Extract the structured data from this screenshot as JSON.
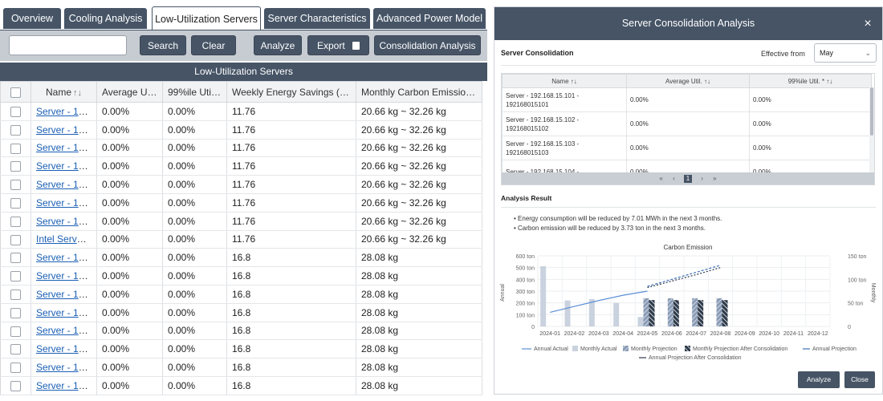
{
  "tabs": [
    {
      "label": "Overview",
      "active": false
    },
    {
      "label": "Cooling Analysis",
      "active": false
    },
    {
      "label": "Low-Utilization Servers",
      "active": true
    },
    {
      "label": "Server Characteristics",
      "active": false
    },
    {
      "label": "Advanced Power Model",
      "active": false
    }
  ],
  "toolbar": {
    "search_placeholder": "",
    "search_value": "",
    "search_label": "Search",
    "clear_label": "Clear",
    "analyze_label": "Analyze",
    "export_label": "Export",
    "consolidation_label": "Consolidation Analysis"
  },
  "grid": {
    "title": "Low-Utilization Servers",
    "columns": [
      "",
      "Name",
      "Average Uti...",
      "99%ile Util. ...",
      "Weekly Energy Savings (kW...",
      "Monthly Carbon Emission S..."
    ],
    "rows": [
      [
        "Server - 19...",
        "0.00%",
        "0.00%",
        "11.76",
        "20.66 kg ~ 32.26 kg"
      ],
      [
        "Server - 19...",
        "0.00%",
        "0.00%",
        "11.76",
        "20.66 kg ~ 32.26 kg"
      ],
      [
        "Server - 19...",
        "0.00%",
        "0.00%",
        "11.76",
        "20.66 kg ~ 32.26 kg"
      ],
      [
        "Server - 19...",
        "0.00%",
        "0.00%",
        "11.76",
        "20.66 kg ~ 32.26 kg"
      ],
      [
        "Server - 19...",
        "0.00%",
        "0.00%",
        "11.76",
        "20.66 kg ~ 32.26 kg"
      ],
      [
        "Server - 19...",
        "0.00%",
        "0.00%",
        "11.76",
        "20.66 kg ~ 32.26 kg"
      ],
      [
        "Server - 19...",
        "0.00%",
        "0.00%",
        "11.76",
        "20.66 kg ~ 32.26 kg"
      ],
      [
        "Intel Server...",
        "0.00%",
        "0.00%",
        "11.76",
        "20.66 kg ~ 32.26 kg"
      ],
      [
        "Server - 19...",
        "0.00%",
        "0.00%",
        "16.8",
        "28.08 kg"
      ],
      [
        "Server - 19...",
        "0.00%",
        "0.00%",
        "16.8",
        "28.08 kg"
      ],
      [
        "Server - 19...",
        "0.00%",
        "0.00%",
        "16.8",
        "28.08 kg"
      ],
      [
        "Server - 19...",
        "0.00%",
        "0.00%",
        "16.8",
        "28.08 kg"
      ],
      [
        "Server - 19...",
        "0.00%",
        "0.00%",
        "16.8",
        "28.08 kg"
      ],
      [
        "Server - 19...",
        "0.00%",
        "0.00%",
        "16.8",
        "28.08 kg"
      ],
      [
        "Server - 19...",
        "0.00%",
        "0.00%",
        "16.8",
        "28.08 kg"
      ],
      [
        "Server - 19...",
        "0.00%",
        "0.00%",
        "16.8",
        "28.08 kg"
      ]
    ]
  },
  "modal": {
    "title": "Server Consolidation Analysis",
    "close_glyph": "×",
    "section1": "Server Consolidation",
    "effective_label": "Effective from",
    "effective_value": "May",
    "subgrid_columns": [
      "Name",
      "Average Util.",
      "99%ile Util. *"
    ],
    "subgrid_rows": [
      [
        "Server - 192.168.15.101 - 192168015101",
        "0.00%",
        "0.00%"
      ],
      [
        "Server - 192.168.15.102 - 192168015102",
        "0.00%",
        "0.00%"
      ],
      [
        "Server - 192.168.15.103 - 192168015103",
        "0.00%",
        "0.00%"
      ],
      [
        "Server - 192.168.15.104 -",
        "0.00%",
        "0.00%"
      ]
    ],
    "pager": {
      "first": "«",
      "prev": "‹",
      "current": "1",
      "next": "›",
      "last": "»"
    },
    "section2": "Analysis Result",
    "bullets": [
      "Energy consumption will be reduced by 7.01 MWh in the next 3 months.",
      "Carbon emission will be reduced by 3.73 ton in the next 3 months."
    ],
    "analyze_label": "Analyze",
    "close_label": "Close"
  },
  "chart_data": {
    "type": "bar",
    "title": "Carbon Emission",
    "categories": [
      "2024-01",
      "2024-02",
      "2024-03",
      "2024-04",
      "2024-05",
      "2024-06",
      "2024-07",
      "2024-08",
      "2024-09",
      "2024-10",
      "2024-11",
      "2024-12"
    ],
    "ylabel_left": "Annual",
    "ylabel_right": "Monthly",
    "ylim_left": [
      0,
      600
    ],
    "ylim_right": [
      0,
      150
    ],
    "left_ticks": [
      "0",
      "100 ton",
      "200 ton",
      "300 ton",
      "400 ton",
      "500 ton",
      "600 ton"
    ],
    "right_ticks": [
      "0",
      "50 ton",
      "100 ton",
      "150 ton"
    ],
    "series": [
      {
        "name": "Annual Actual",
        "kind": "line",
        "axis": "left",
        "values": [
          120,
          170,
          220,
          265,
          300,
          null,
          null,
          null,
          null,
          null,
          null,
          null
        ]
      },
      {
        "name": "Monthly Actual",
        "kind": "bar",
        "axis": "right",
        "values": [
          128,
          55,
          58,
          50,
          20,
          null,
          null,
          null,
          null,
          null,
          null,
          null
        ]
      },
      {
        "name": "Monthly Projection",
        "kind": "bar",
        "axis": "right",
        "values": [
          null,
          null,
          null,
          null,
          60,
          60,
          60,
          60,
          null,
          null,
          null,
          null
        ]
      },
      {
        "name": "Monthly Projection After Consolidation",
        "kind": "bar",
        "axis": "right",
        "values": [
          null,
          null,
          null,
          null,
          56,
          56,
          56,
          56,
          null,
          null,
          null,
          null
        ]
      },
      {
        "name": "Annual Projection",
        "kind": "dash",
        "axis": "left",
        "values": [
          null,
          null,
          null,
          null,
          340,
          400,
          460,
          520,
          null,
          null,
          null,
          null
        ]
      },
      {
        "name": "Annual Projection After Consolidation",
        "kind": "dash",
        "axis": "left",
        "values": [
          null,
          null,
          null,
          null,
          330,
          385,
          440,
          500,
          null,
          null,
          null,
          null
        ]
      }
    ],
    "colors": {
      "annual_actual": "#5b8ed6",
      "monthly_actual": "#c9d2de",
      "projection": "#8a9bb5",
      "after": "#2d3a4a",
      "dash": "#3d6fb8"
    },
    "legend": "bottom"
  }
}
